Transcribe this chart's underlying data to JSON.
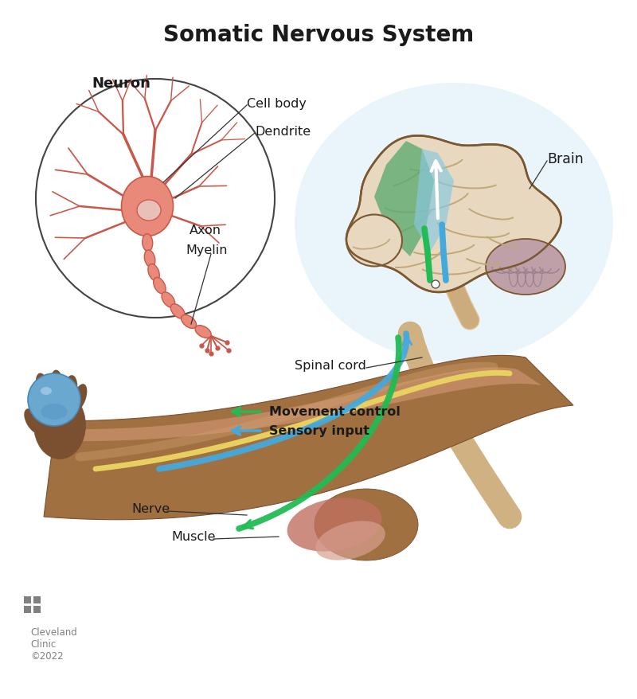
{
  "title": "Somatic Nervous System",
  "title_fontsize": 20,
  "title_fontweight": "bold",
  "background_color": "#ffffff",
  "labels": {
    "neuron": "Neuron",
    "cell_body": "Cell body",
    "dendrite": "Dendrite",
    "axon": "Axon",
    "myelin": "Myelin",
    "brain": "Brain",
    "spinal_cord": "Spinal cord",
    "movement_control": "Movement control",
    "sensory_input": "Sensory input",
    "nerve": "Nerve",
    "muscle": "Muscle",
    "cleveland": "Cleveland\nClinic\n©2022"
  },
  "colors": {
    "neuron_body_fill": "#e8897a",
    "neuron_body_light": "#f0a898",
    "neuron_nucleus": "#e8c0b8",
    "neuron_dendrites": "#c8584a",
    "circle_outline": "#444444",
    "brain_base": "#e8d8c0",
    "brain_shadow": "#c8b898",
    "brain_fold": "#c0a878",
    "brain_green": "#5aaa70",
    "brain_blue_light": "#88c8e0",
    "brain_cerebellum": "#c0a0a8",
    "brain_outline": "#7a5830",
    "spinal_cord_fill": "#dfc090",
    "spinal_cord_outline": "#b09060",
    "green_arrow": "#22bb55",
    "blue_arrow": "#44aadd",
    "arm_skin_light": "#c08860",
    "arm_skin_mid": "#a07040",
    "arm_skin_dark": "#7a5030",
    "arm_muscle_red": "#c07060",
    "arm_muscle_pink": "#d8a090",
    "nerve_yellow": "#e8d060",
    "ball_blue_dark": "#4888b8",
    "ball_blue_mid": "#6aa8d0",
    "ball_blue_light": "#a8cce8",
    "glow_blue": "#daeef8",
    "text_dark": "#1a1a1a",
    "annotation_line": "#333333",
    "cleveland_gray": "#808080",
    "white_arrow": "#ffffff"
  }
}
